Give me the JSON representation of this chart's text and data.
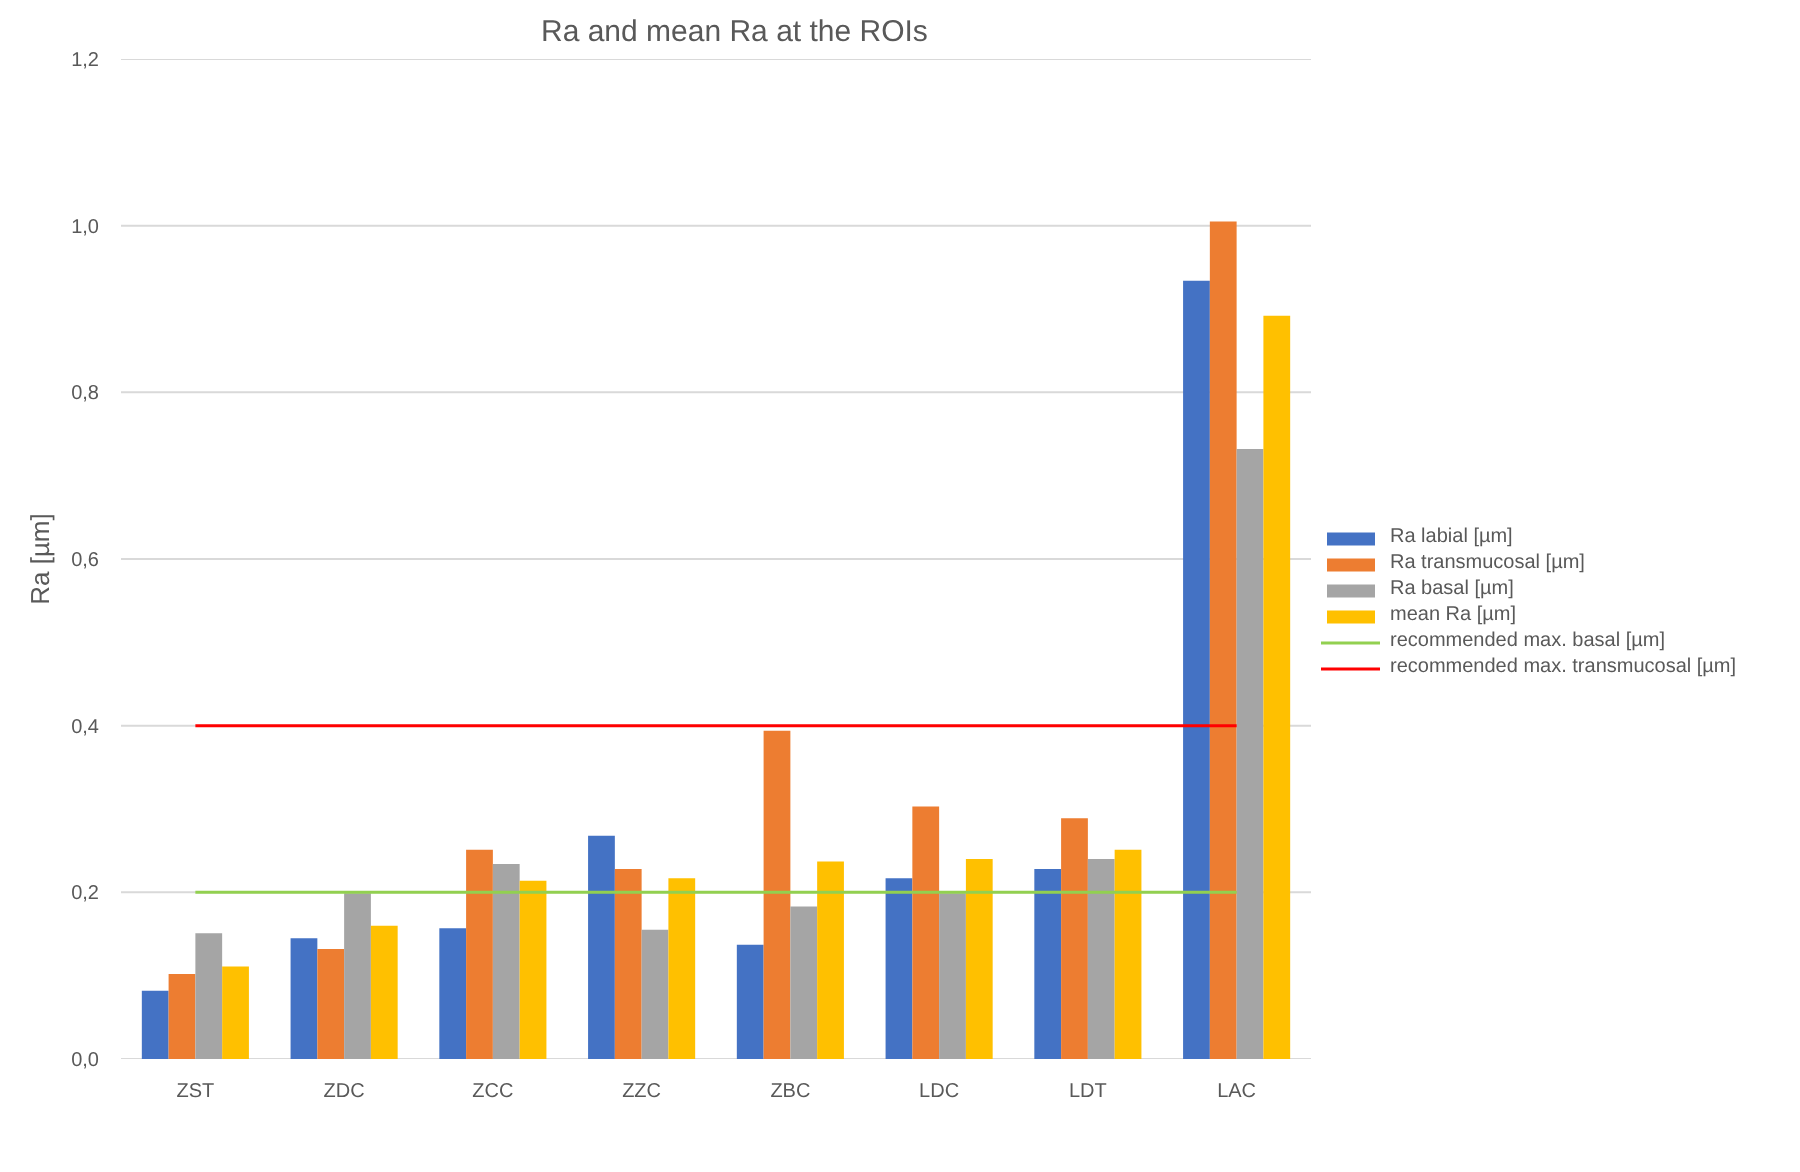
{
  "chart_data": {
    "type": "bar",
    "title": "Ra and mean Ra at the ROIs",
    "ylabel": "Ra [µm]",
    "categories": [
      "ZST",
      "ZDC",
      "ZCC",
      "ZZC",
      "ZBC",
      "LDC",
      "LDT",
      "LAC"
    ],
    "series": [
      {
        "name": "Ra labial [µm]",
        "color": "#4472c4",
        "values": [
          0.082,
          0.145,
          0.157,
          0.268,
          0.137,
          0.217,
          0.228,
          0.934
        ]
      },
      {
        "name": "Ra transmucosal [µm]",
        "color": "#ed7d31",
        "values": [
          0.102,
          0.132,
          0.251,
          0.228,
          0.394,
          0.303,
          0.289,
          1.005
        ]
      },
      {
        "name": "Ra basal [µm]",
        "color": "#a5a5a5",
        "values": [
          0.151,
          0.199,
          0.234,
          0.155,
          0.183,
          0.199,
          0.24,
          0.732
        ]
      },
      {
        "name": "mean Ra [µm]",
        "color": "#ffc000",
        "values": [
          0.111,
          0.16,
          0.214,
          0.217,
          0.237,
          0.24,
          0.251,
          0.892
        ]
      },
      {
        "name": "recommended max. basal [µm]",
        "color": "#92d050",
        "type": "line",
        "values": [
          0.2,
          0.2,
          0.2,
          0.2,
          0.2,
          0.2,
          0.2,
          0.2
        ]
      },
      {
        "name": "recommended max. transmucosal [µm]",
        "color": "#ff0000",
        "type": "line",
        "values": [
          0.4,
          0.4,
          0.4,
          0.4,
          0.4,
          0.4,
          0.4,
          0.4
        ]
      }
    ],
    "ylim": [
      0,
      1.2
    ],
    "yticks": [
      {
        "value": 0,
        "label": "0,0"
      },
      {
        "value": 0.2,
        "label": "0,2"
      },
      {
        "value": 0.4,
        "label": "0,4"
      },
      {
        "value": 0.6,
        "label": "0,6"
      },
      {
        "value": 0.8,
        "label": "0,8"
      },
      {
        "value": 1.0,
        "label": "1,0"
      },
      {
        "value": 1.2,
        "label": "1,2"
      }
    ],
    "grid": "y",
    "legend": "right",
    "marker": "none"
  }
}
